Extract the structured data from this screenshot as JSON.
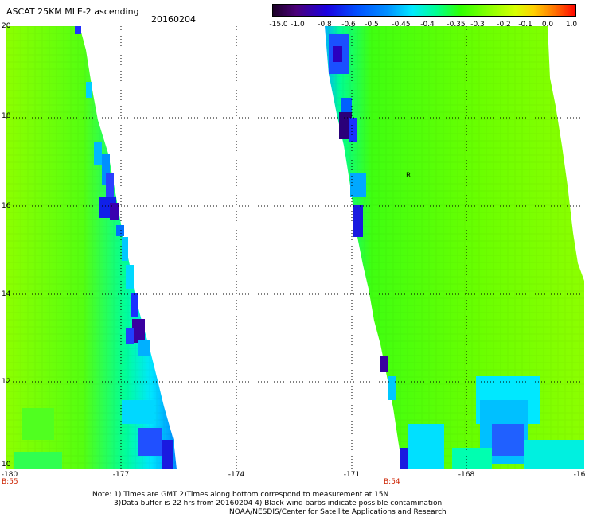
{
  "header": {
    "title": "ASCAT 25KM MLE-2 ascending",
    "date": "20160204"
  },
  "colorbar": {
    "ticks": [
      "-15.0",
      "-1.0",
      "-0.8",
      "-0.6",
      "-0.5",
      "-0.45",
      "-0.4",
      "-0.35",
      "-0.3",
      "-0.2",
      "-0.1",
      "0.0",
      "1.0"
    ],
    "colors": [
      "#2a0038",
      "#4b007a",
      "#1a00e0",
      "#0040ff",
      "#0090ff",
      "#00e0ff",
      "#00ff90",
      "#40ff00",
      "#80ff00",
      "#c0ff00",
      "#ffd000",
      "#ff8000",
      "#ff0000"
    ]
  },
  "map": {
    "lat_labels": [
      "20",
      "18",
      "16",
      "14",
      "12",
      "10"
    ],
    "lon_labels": [
      "-180",
      "-177",
      "-174",
      "-171",
      "-168",
      "-16"
    ],
    "time_labels": [
      "B:55",
      "B:54"
    ],
    "marker_text": "R"
  },
  "footer": {
    "note_line1": "Note: 1) Times are GMT 2)Times along bottom correspond to measurement at 15N",
    "note_line2": "3)Data buffer is 22 hrs from 20160204 4) Black wind barbs indicate possible contamination",
    "credit": "NOAA/NESDIS/Center for Satellite Applications and Research"
  }
}
